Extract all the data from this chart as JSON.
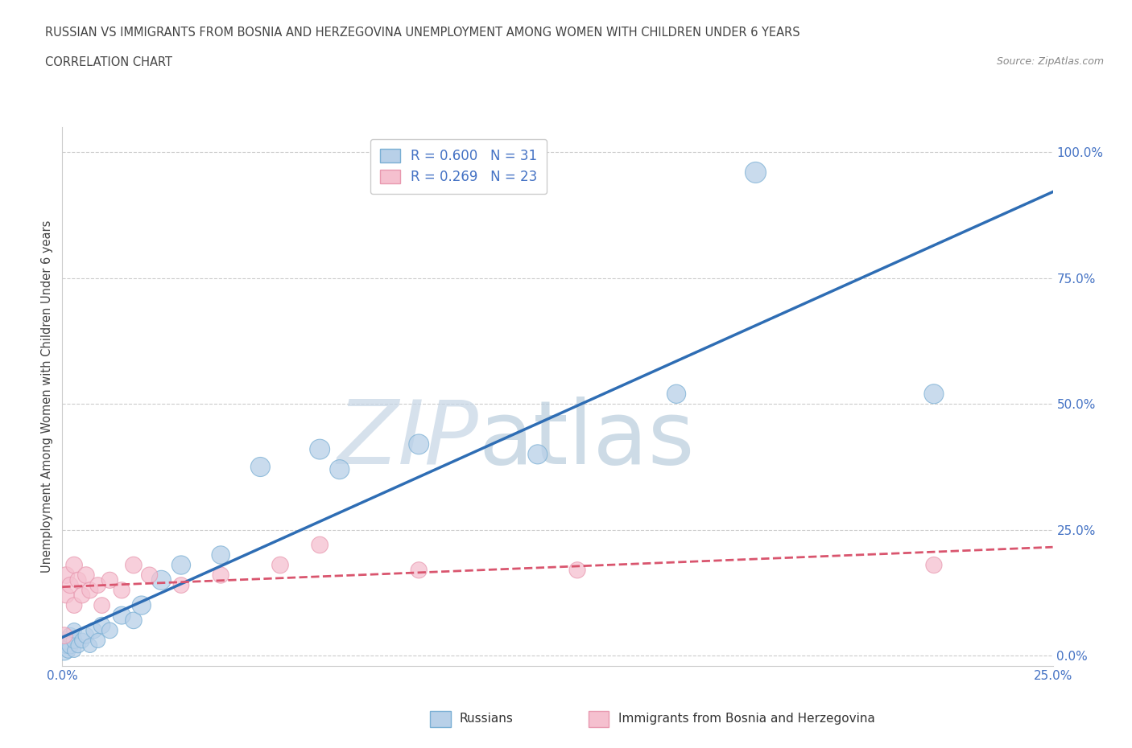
{
  "title_line1": "RUSSIAN VS IMMIGRANTS FROM BOSNIA AND HERZEGOVINA UNEMPLOYMENT AMONG WOMEN WITH CHILDREN UNDER 6 YEARS",
  "title_line2": "CORRELATION CHART",
  "source": "Source: ZipAtlas.com",
  "ylabel": "Unemployment Among Women with Children Under 6 years",
  "r_russian": 0.6,
  "n_russian": 31,
  "r_bosnian": 0.269,
  "n_bosnian": 23,
  "legend_label_russian": "Russians",
  "legend_label_bosnian": "Immigrants from Bosnia and Herzegovina",
  "color_russian_fill": "#b8d0e8",
  "color_russian_edge": "#7aafd4",
  "color_bosnian_fill": "#f5c0cf",
  "color_bosnian_edge": "#e899b0",
  "trend_russian": "#2e6db4",
  "trend_bosnian": "#d9556e",
  "watermark_zip_color": "#c5d5e5",
  "watermark_atlas_color": "#b8ccdc",
  "background": "#ffffff",
  "grid_color": "#cccccc",
  "tick_color": "#4472c4",
  "title_color": "#444444",
  "source_color": "#888888",
  "xlim": [
    0.0,
    0.25
  ],
  "ylim": [
    -0.02,
    1.05
  ],
  "ytick_positions": [
    0.0,
    0.25,
    0.5,
    0.75,
    1.0
  ],
  "xtick_positions": [
    0.0,
    0.25
  ],
  "ru_x": [
    0.0005,
    0.001,
    0.001,
    0.0015,
    0.002,
    0.002,
    0.003,
    0.003,
    0.003,
    0.004,
    0.005,
    0.006,
    0.007,
    0.008,
    0.009,
    0.01,
    0.012,
    0.015,
    0.018,
    0.02,
    0.025,
    0.03,
    0.04,
    0.05,
    0.065,
    0.07,
    0.09,
    0.12,
    0.155,
    0.175,
    0.22
  ],
  "ru_y": [
    0.01,
    0.02,
    0.03,
    0.01,
    0.02,
    0.04,
    0.01,
    0.03,
    0.05,
    0.02,
    0.03,
    0.04,
    0.02,
    0.05,
    0.03,
    0.06,
    0.05,
    0.08,
    0.07,
    0.1,
    0.15,
    0.18,
    0.2,
    0.375,
    0.41,
    0.37,
    0.42,
    0.4,
    0.52,
    0.96,
    0.52
  ],
  "ru_s": [
    300,
    200,
    250,
    180,
    220,
    200,
    150,
    200,
    180,
    170,
    180,
    200,
    160,
    200,
    170,
    220,
    200,
    250,
    220,
    280,
    300,
    280,
    260,
    300,
    320,
    300,
    320,
    300,
    280,
    350,
    300
  ],
  "bo_x": [
    0.0005,
    0.001,
    0.001,
    0.002,
    0.003,
    0.003,
    0.004,
    0.005,
    0.006,
    0.007,
    0.009,
    0.01,
    0.012,
    0.015,
    0.018,
    0.022,
    0.03,
    0.04,
    0.055,
    0.065,
    0.09,
    0.13,
    0.22
  ],
  "bo_y": [
    0.04,
    0.16,
    0.12,
    0.14,
    0.18,
    0.1,
    0.15,
    0.12,
    0.16,
    0.13,
    0.14,
    0.1,
    0.15,
    0.13,
    0.18,
    0.16,
    0.14,
    0.16,
    0.18,
    0.22,
    0.17,
    0.17,
    0.18
  ],
  "bo_s": [
    220,
    220,
    200,
    210,
    220,
    200,
    210,
    200,
    220,
    210,
    200,
    200,
    210,
    210,
    220,
    210,
    200,
    210,
    220,
    220,
    210,
    210,
    210
  ]
}
